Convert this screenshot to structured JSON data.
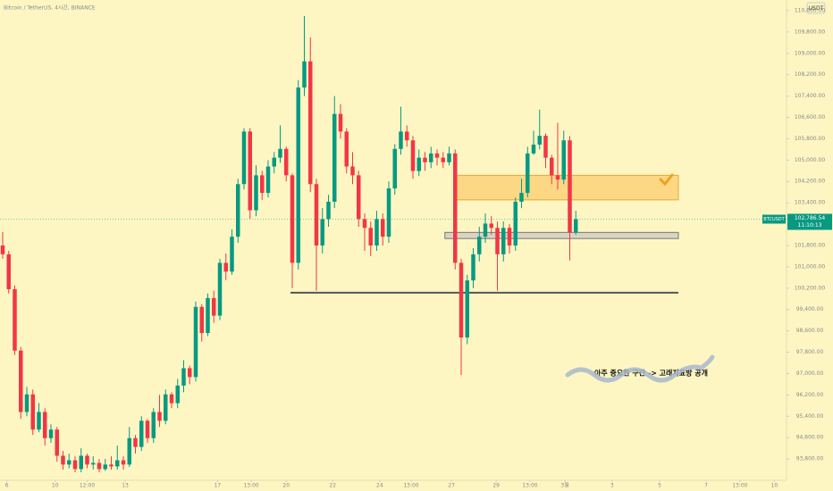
{
  "chart_data": {
    "type": "candlestick",
    "title": "Bitcoin / TetherUS, 4시간, BINANCE",
    "currency": "USDT",
    "colors": {
      "up": "#089981",
      "down": "#f23645",
      "background": "#fdf6c3",
      "zone": "#fcd27a",
      "level": "#8a8a8a"
    },
    "ylim": [
      93000,
      111000
    ],
    "yticks": [
      {
        "value": 93800,
        "label": "93,800.00"
      },
      {
        "value": 94600,
        "label": "94,600.00"
      },
      {
        "value": 95400,
        "label": "95,400.00"
      },
      {
        "value": 96200,
        "label": "96,200.00"
      },
      {
        "value": 97000,
        "label": "97,000.00"
      },
      {
        "value": 97800,
        "label": "97,800.00"
      },
      {
        "value": 98600,
        "label": "98,600.00"
      },
      {
        "value": 99400,
        "label": "99,400.00"
      },
      {
        "value": 100200,
        "label": "100,200.00"
      },
      {
        "value": 101000,
        "label": "101,000.00"
      },
      {
        "value": 101800,
        "label": "101,800.00"
      },
      {
        "value": 102600,
        "label": "102,600.00"
      },
      {
        "value": 103400,
        "label": "103,400.00"
      },
      {
        "value": 104200,
        "label": "104,200.00"
      },
      {
        "value": 105000,
        "label": "105,000.00"
      },
      {
        "value": 105800,
        "label": "105,800.00"
      },
      {
        "value": 106600,
        "label": "106,600.00"
      },
      {
        "value": 107400,
        "label": "107,400.00"
      },
      {
        "value": 108200,
        "label": "108,200.00"
      },
      {
        "value": 109000,
        "label": "109,000.00"
      },
      {
        "value": 109800,
        "label": "109,800.00"
      },
      {
        "value": 110600,
        "label": "110,600.00"
      }
    ],
    "xticks": [
      {
        "value": 0.7,
        "label": "6"
      },
      {
        "value": 8.7,
        "label": "10"
      },
      {
        "value": 14,
        "label": "12:00"
      },
      {
        "value": 20.3,
        "label": "13"
      },
      {
        "value": 35.6,
        "label": "17"
      },
      {
        "value": 41.2,
        "label": "13:00"
      },
      {
        "value": 47,
        "label": "20"
      },
      {
        "value": 54.7,
        "label": "22"
      },
      {
        "value": 62.5,
        "label": "24"
      },
      {
        "value": 67.7,
        "label": "13:00"
      },
      {
        "value": 74.4,
        "label": "27"
      },
      {
        "value": 81.8,
        "label": "29"
      },
      {
        "value": 87.4,
        "label": "13:00"
      },
      {
        "value": 93.2,
        "label": "3월"
      },
      {
        "value": 101,
        "label": "3"
      },
      {
        "value": 108.9,
        "label": "5"
      },
      {
        "value": 116.6,
        "label": "7"
      },
      {
        "value": 122.2,
        "label": "13:00"
      },
      {
        "value": 127.9,
        "label": "10"
      }
    ],
    "candles": [
      [
        101800,
        102300,
        101300,
        101470
      ],
      [
        101470,
        101600,
        100000,
        100160
      ],
      [
        100160,
        100300,
        97700,
        97860
      ],
      [
        97860,
        98000,
        95300,
        95560
      ],
      [
        95560,
        96500,
        95400,
        96220
      ],
      [
        96220,
        96400,
        94700,
        94900
      ],
      [
        94900,
        95900,
        94800,
        95560
      ],
      [
        95560,
        95700,
        94300,
        94580
      ],
      [
        94580,
        95100,
        94400,
        94900
      ],
      [
        94900,
        95000,
        93700,
        93920
      ],
      [
        93920,
        94100,
        93400,
        93590
      ],
      [
        93590,
        94000,
        93450,
        93750
      ],
      [
        93750,
        93900,
        93300,
        93420
      ],
      [
        93420,
        94200,
        93300,
        93920
      ],
      [
        93920,
        94000,
        93450,
        93590
      ],
      [
        93590,
        93900,
        93400,
        93650
      ],
      [
        93650,
        93800,
        93300,
        93420
      ],
      [
        93420,
        93800,
        93350,
        93590
      ],
      [
        93590,
        93900,
        93400,
        93520
      ],
      [
        93520,
        94300,
        93400,
        93750
      ],
      [
        93750,
        93900,
        93400,
        93590
      ],
      [
        93590,
        95000,
        93500,
        94580
      ],
      [
        94580,
        94700,
        94000,
        94250
      ],
      [
        94250,
        95400,
        94100,
        95230
      ],
      [
        95230,
        95300,
        94400,
        94580
      ],
      [
        94580,
        95700,
        94400,
        95560
      ],
      [
        95560,
        96200,
        95000,
        95230
      ],
      [
        95230,
        96400,
        95100,
        96220
      ],
      [
        96220,
        96300,
        95700,
        95890
      ],
      [
        95890,
        96800,
        95700,
        96550
      ],
      [
        96550,
        97500,
        96300,
        97200
      ],
      [
        97200,
        97300,
        96600,
        96870
      ],
      [
        96870,
        99700,
        96700,
        99500
      ],
      [
        99500,
        99600,
        98200,
        98520
      ],
      [
        98520,
        100000,
        98400,
        99830
      ],
      [
        99830,
        100100,
        98900,
        99170
      ],
      [
        99170,
        101300,
        99000,
        101150
      ],
      [
        101150,
        101500,
        100500,
        100820
      ],
      [
        100820,
        102400,
        100700,
        102130
      ],
      [
        102130,
        104300,
        101900,
        104100
      ],
      [
        104100,
        106200,
        103900,
        106070
      ],
      [
        106070,
        106200,
        102800,
        103120
      ],
      [
        103120,
        104800,
        102900,
        104430
      ],
      [
        104430,
        104600,
        103500,
        103770
      ],
      [
        103770,
        105000,
        103600,
        104760
      ],
      [
        104760,
        105300,
        104500,
        105090
      ],
      [
        105090,
        106300,
        104900,
        105420
      ],
      [
        105420,
        105500,
        104200,
        104430
      ],
      [
        104430,
        104500,
        100200,
        101150
      ],
      [
        101150,
        108000,
        100900,
        107720
      ],
      [
        107720,
        110400,
        107400,
        108700
      ],
      [
        108700,
        109600,
        103800,
        104100
      ],
      [
        104100,
        104300,
        100100,
        101800
      ],
      [
        101800,
        103200,
        101500,
        102790
      ],
      [
        102790,
        103700,
        102500,
        103440
      ],
      [
        103440,
        107400,
        103200,
        106730
      ],
      [
        106730,
        107100,
        105800,
        106070
      ],
      [
        106070,
        106200,
        104500,
        104760
      ],
      [
        104760,
        105300,
        104100,
        104430
      ],
      [
        104430,
        104600,
        102500,
        102790
      ],
      [
        102790,
        103000,
        101600,
        102460
      ],
      [
        102460,
        102700,
        101400,
        101800
      ],
      [
        101800,
        103100,
        101600,
        102790
      ],
      [
        102790,
        103000,
        101800,
        102130
      ],
      [
        102130,
        104200,
        101900,
        103940
      ],
      [
        103940,
        105600,
        103700,
        105420
      ],
      [
        105420,
        107000,
        105200,
        106070
      ],
      [
        106070,
        106300,
        105500,
        105740
      ],
      [
        105740,
        105900,
        104300,
        104590
      ],
      [
        104590,
        105400,
        104400,
        105090
      ],
      [
        105090,
        105300,
        104600,
        104920
      ],
      [
        104920,
        105500,
        104700,
        105250
      ],
      [
        105250,
        105400,
        104800,
        105090
      ],
      [
        105090,
        105300,
        104700,
        104920
      ],
      [
        104920,
        105500,
        104800,
        105250
      ],
      [
        105250,
        105400,
        100900,
        101150
      ],
      [
        101150,
        101300,
        96940,
        98350
      ],
      [
        98350,
        100700,
        98100,
        100490
      ],
      [
        100490,
        101700,
        100200,
        101470
      ],
      [
        101470,
        102500,
        101200,
        102130
      ],
      [
        102130,
        103000,
        101900,
        102620
      ],
      [
        102620,
        102900,
        102200,
        102460
      ],
      [
        102460,
        102700,
        100100,
        101470
      ],
      [
        101470,
        102700,
        101200,
        102460
      ],
      [
        102460,
        102600,
        101500,
        101800
      ],
      [
        101800,
        103600,
        101600,
        103440
      ],
      [
        103440,
        104300,
        103200,
        103770
      ],
      [
        103770,
        105500,
        103600,
        105250
      ],
      [
        105250,
        106100,
        105200,
        105580
      ],
      [
        105580,
        106890,
        105400,
        105910
      ],
      [
        105910,
        106000,
        104700,
        105090
      ],
      [
        105090,
        105200,
        104100,
        104430
      ],
      [
        104430,
        106400,
        103900,
        104270
      ],
      [
        104270,
        106100,
        104100,
        105740
      ],
      [
        105740,
        105900,
        101240,
        102290
      ],
      [
        102290,
        103100,
        102200,
        102786.54
      ]
    ],
    "zones": [
      {
        "low": 103510,
        "high": 104430,
        "from": 75,
        "to": 112,
        "style": "zone"
      },
      {
        "low": 102060,
        "high": 102290,
        "from": 73.3,
        "to": 112,
        "style": "band"
      }
    ],
    "levels": [
      {
        "value": 100030,
        "from": 47.7,
        "to": 112
      }
    ],
    "last_price": {
      "symbol": "BTCUSDT",
      "value": 102786.54,
      "label": "102,786.54",
      "countdown": "11:10:13"
    },
    "annotation": "아주 중요한 구간 -> 고래지표방 공개"
  }
}
